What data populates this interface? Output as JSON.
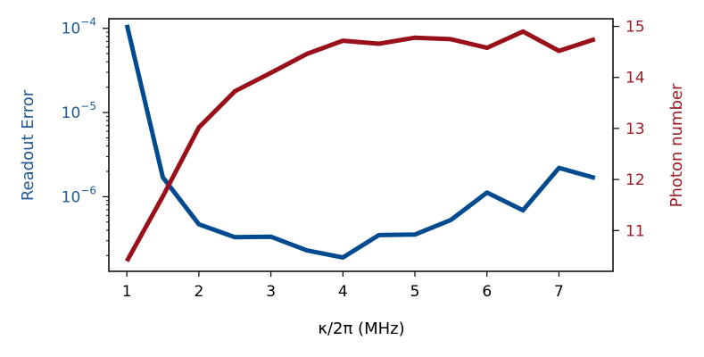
{
  "chart_data": {
    "type": "line",
    "xlabel": "κ/2π (MHz)",
    "ylabel_left": "Readout Error",
    "ylabel_right": "Photon number",
    "xlim": [
      0.75,
      7.75
    ],
    "xticks": [
      1,
      2,
      3,
      4,
      5,
      6,
      7
    ],
    "left_axis": {
      "scale": "log",
      "ylim": [
        1.3e-07,
        0.00013
      ],
      "major_ticks": [
        {
          "value": 1e-06,
          "base": "10",
          "exp": "−6"
        },
        {
          "value": 1e-05,
          "base": "10",
          "exp": "−5"
        },
        {
          "value": 0.0001,
          "base": "10",
          "exp": "−4"
        }
      ],
      "color": "#1f5a96"
    },
    "right_axis": {
      "scale": "linear",
      "ylim": [
        10.2,
        15.15
      ],
      "ticks": [
        11,
        12,
        13,
        14,
        15
      ],
      "color": "#9b1c23"
    },
    "x": [
      1.0,
      1.5,
      2.0,
      2.5,
      3.0,
      3.5,
      4.0,
      4.5,
      5.0,
      5.5,
      6.0,
      6.5,
      7.0,
      7.5
    ],
    "series": [
      {
        "axis": "left",
        "color": "#004a8f",
        "values": [
          0.00011,
          1.7e-06,
          4.7e-07,
          3.3e-07,
          3.35e-07,
          2.3e-07,
          1.9e-07,
          3.5e-07,
          3.55e-07,
          5.3e-07,
          1.12e-06,
          6.9e-07,
          2.2e-06,
          1.67e-06
        ]
      },
      {
        "axis": "right",
        "color": "#99101a",
        "values": [
          10.4,
          11.67,
          13.02,
          13.73,
          14.09,
          14.46,
          14.72,
          14.66,
          14.78,
          14.75,
          14.58,
          14.9,
          14.52,
          14.75
        ]
      }
    ]
  }
}
